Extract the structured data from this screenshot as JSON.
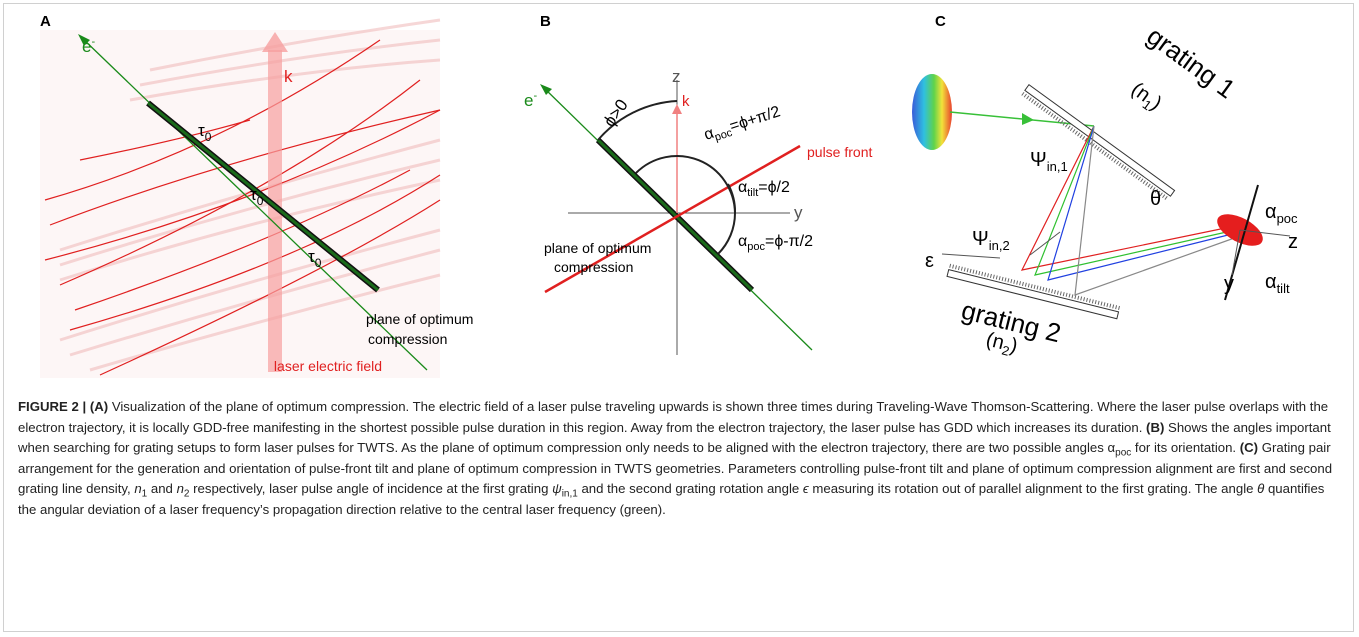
{
  "panels": {
    "a": {
      "label": "A",
      "electron": {
        "base": "e",
        "sup": "-"
      },
      "k": "k",
      "tau": [
        {
          "base": "τ",
          "sub": "0"
        },
        {
          "base": "τ",
          "sub": "0"
        },
        {
          "base": "τ",
          "sub": "0"
        }
      ],
      "plane": [
        "plane of optimum",
        "compression"
      ],
      "field": "laser electric field"
    },
    "b": {
      "label": "B",
      "electron": {
        "base": "e",
        "sup": "-"
      },
      "z": "z",
      "y": "y",
      "k": "k",
      "phi": "ϕ>0",
      "alpha_poc_plus": {
        "base": "α",
        "sub": "poc",
        "rest": "=ϕ+π/2"
      },
      "alpha_tilt": {
        "base": "α",
        "sub": "tilt",
        "rest": "=ϕ/2"
      },
      "alpha_poc_minus": {
        "base": "α",
        "sub": "poc",
        "rest": "=ϕ-π/2"
      },
      "pulse_front": "pulse front",
      "plane": [
        "plane of optimum",
        "compression"
      ]
    },
    "c": {
      "label": "C",
      "grating1": "grating 1",
      "n1": {
        "open": "(n",
        "sub": "1",
        "close": ")"
      },
      "psi1": {
        "base": "Ψ",
        "sub": "in,1"
      },
      "theta": "θ",
      "psi2": {
        "base": "Ψ",
        "sub": "in,2"
      },
      "epsilon": "ε",
      "grating2": "grating 2",
      "n2": {
        "open": "(n",
        "sub": "2",
        "close": ")"
      },
      "alpha_poc": {
        "base": "α",
        "sub": "poc"
      },
      "z": "z",
      "y": "y",
      "alpha_tilt": {
        "base": "α",
        "sub": "tilt"
      }
    }
  },
  "caption": [
    "FIGURE 2 | (A)",
    " Visualization of the plane of optimum compression. The electric field of a laser pulse traveling upwards is shown three times during Traveling-Wave Thomson-Scattering. Where the laser pulse overlaps with the electron trajectory, it is locally GDD-free manifesting in the shortest possible pulse duration in this region. Away from the electron trajectory, the laser pulse has GDD which increases its duration. ",
    "(B)",
    " Shows the angles important when searching for grating setups to form laser pulses for TWTS. As the plane of optimum compression only needs to be aligned with the electron trajectory, there are two possible angles ",
    "α",
    "poc",
    " for its orientation. ",
    "(C)",
    " Grating pair arrangement for the generation and orientation of pulse-front tilt and plane of optimum compression in TWTS geometries. Parameters controlling pulse-front tilt and plane of optimum compression alignment are first and second grating line density, ",
    "n",
    "1",
    " and ",
    "n",
    "2",
    " respectively, laser pulse angle of incidence at the first grating ",
    "ψ",
    "in,1",
    " and the second grating rotation angle ",
    "ϵ",
    " measuring its rotation out of parallel alignment to the first grating. The angle ",
    "θ",
    " quantifies the angular deviation of a laser frequency’s propagation direction relative to the central laser frequency (green)."
  ]
}
